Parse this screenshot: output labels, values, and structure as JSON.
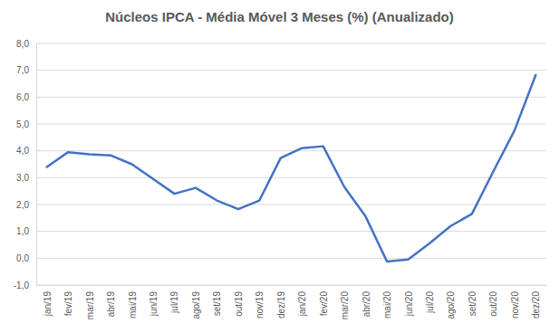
{
  "chart_data": {
    "type": "line",
    "title": "Núcleos IPCA - Média Móvel 3 Meses (%) (Anualizado)",
    "categories": [
      "jan/19",
      "fev/19",
      "mar/19",
      "abr/19",
      "mai/19",
      "jun/19",
      "jul/19",
      "ago/19",
      "set/19",
      "out/19",
      "nov/19",
      "dez/19",
      "jan/20",
      "fev/20",
      "mar/20",
      "abr/20",
      "mai/20",
      "jun/20",
      "jul/20",
      "ago/20",
      "set/20",
      "out/20",
      "nov/20",
      "dez/20"
    ],
    "values": [
      3.4,
      3.95,
      3.87,
      3.83,
      3.5,
      2.95,
      2.4,
      2.62,
      2.15,
      1.83,
      2.15,
      3.73,
      4.1,
      4.17,
      2.65,
      1.55,
      -0.12,
      -0.05,
      0.55,
      1.2,
      1.65,
      3.22,
      4.75,
      6.82
    ],
    "color": "#4472c4",
    "ylim": [
      -1,
      8
    ],
    "yticks": [
      {
        "value": -1,
        "label": "-1,0"
      },
      {
        "value": 0,
        "label": "0,0"
      },
      {
        "value": 1,
        "label": "1,0"
      },
      {
        "value": 2,
        "label": "2,0"
      },
      {
        "value": 3,
        "label": "3,0"
      },
      {
        "value": 4,
        "label": "4,0"
      },
      {
        "value": 5,
        "label": "5,0"
      },
      {
        "value": 6,
        "label": "6,0"
      },
      {
        "value": 7,
        "label": "7,0"
      },
      {
        "value": 8,
        "label": "8,0"
      }
    ],
    "grid": true
  }
}
